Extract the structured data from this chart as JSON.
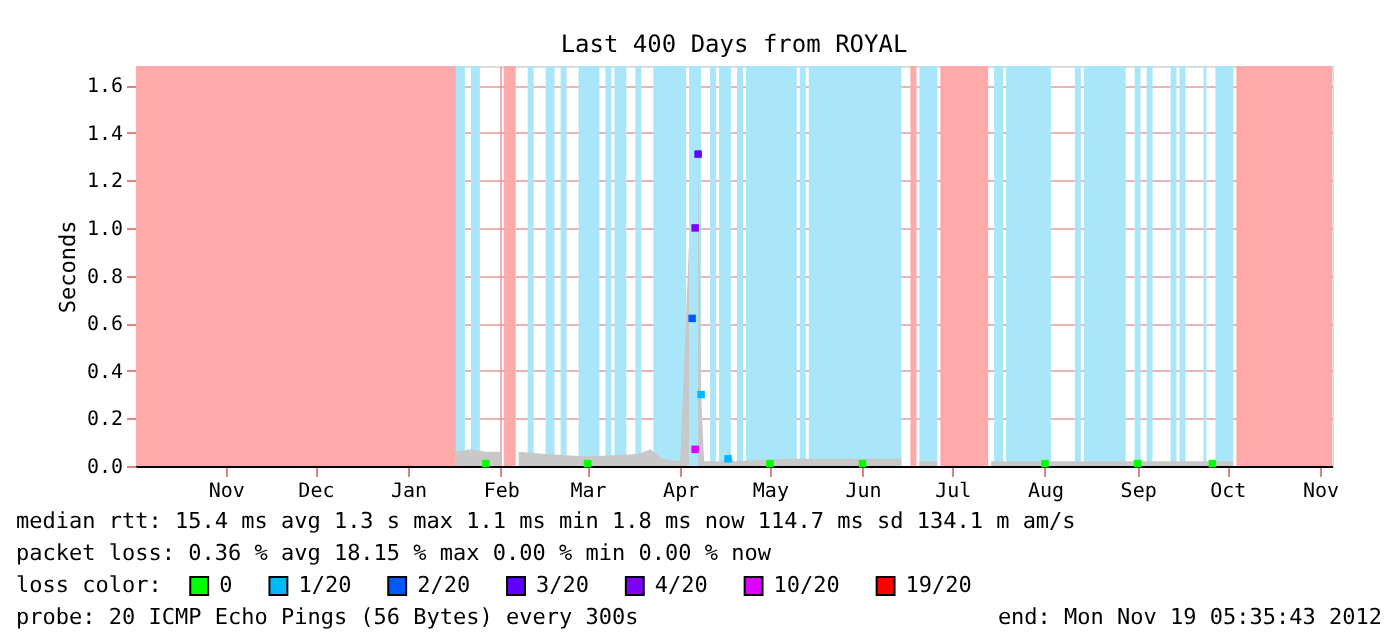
{
  "chart_data": {
    "type": "area",
    "title": "Last 400 Days from ROYAL",
    "ylabel": "Seconds",
    "legend_title": "loss color:",
    "legend": "bottom",
    "grid": true,
    "xlim": [
      "2011-10-16",
      "2012-11-19"
    ],
    "xticks": [
      {
        "value": "2011-11-15",
        "label": "Nov"
      },
      {
        "value": "2011-12-15",
        "label": "Dec"
      },
      {
        "value": "2012-01-15",
        "label": "Jan"
      },
      {
        "value": "2012-02-15",
        "label": "Feb"
      },
      {
        "value": "2012-03-15",
        "label": "Mar"
      },
      {
        "value": "2012-04-15",
        "label": "Apr"
      },
      {
        "value": "2012-05-15",
        "label": "May"
      },
      {
        "value": "2012-06-15",
        "label": "Jun"
      },
      {
        "value": "2012-07-15",
        "label": "Jul"
      },
      {
        "value": "2012-08-15",
        "label": "Aug"
      },
      {
        "value": "2012-09-15",
        "label": "Sep"
      },
      {
        "value": "2012-10-15",
        "label": "Oct"
      },
      {
        "value": "2012-11-15",
        "label": "Nov"
      }
    ],
    "ylim": [
      0,
      1.68
    ],
    "yticks": [
      {
        "value": 0,
        "label": "0.0"
      },
      0.2,
      0.4,
      0.6,
      0.8,
      {
        "value": 1,
        "label": "1.0"
      },
      1.2,
      1.4,
      1.6
    ],
    "series": [
      {
        "color": "#c8c8c8",
        "x": [
          "2012-01-31",
          "2012-02-05",
          "2012-02-10",
          "2012-02-15",
          "2012-02-16",
          "2012-02-20",
          "2012-02-21",
          "2012-03-01",
          "2012-03-15",
          "2012-04-01",
          "2012-04-05",
          "2012-04-09",
          "2012-04-15",
          "2012-04-18",
          "2012-04-19",
          "2012-04-20",
          "2012-04-21",
          "2012-04-22",
          "2012-04-23",
          "2012-04-30",
          "2012-05-01",
          "2012-05-03",
          "2012-05-20",
          "2012-06-28",
          "2012-07-01",
          "2012-07-04",
          "2012-07-10",
          "2012-07-11",
          "2012-07-28",
          "2012-08-20",
          "2012-09-20",
          "2012-10-17"
        ],
        "values": [
          0.06,
          0.07,
          0.06,
          0.06,
          null,
          null,
          0.06,
          0.05,
          0.04,
          0.05,
          0.07,
          0.03,
          0.02,
          0.95,
          null,
          null,
          1.3,
          0.3,
          0.02,
          0.02,
          0.06,
          0.02,
          0.03,
          0.03,
          null,
          0.02,
          0.02,
          null,
          0.02,
          0.02,
          0.02,
          0.02
        ]
      },
      {
        "type": "scatter",
        "name": "0",
        "color": "#00ff00",
        "marker": "square",
        "x": [
          "2012-02-10",
          "2012-03-15",
          "2012-05-15",
          "2012-06-15",
          "2012-08-15",
          "2012-09-15",
          "2012-10-10"
        ],
        "values": [
          0.01,
          0.01,
          0.01,
          0.01,
          0.01,
          0.01,
          0.01
        ]
      },
      {
        "type": "scatter",
        "name": "1/20",
        "color": "#00b8ff",
        "marker": "square",
        "x": [
          "2012-04-22",
          "2012-05-01"
        ],
        "values": [
          0.3,
          0.03
        ]
      },
      {
        "type": "scatter",
        "name": "2/20",
        "color": "#0059ff",
        "marker": "square",
        "x": [
          "2012-04-19"
        ],
        "values": [
          0.62
        ]
      },
      {
        "type": "scatter",
        "name": "3/20",
        "color": "#5e00ff",
        "marker": "square",
        "x": [
          "2012-04-21"
        ],
        "values": [
          1.31
        ]
      },
      {
        "type": "scatter",
        "name": "4/20",
        "color": "#7e00ff",
        "marker": "square",
        "x": [
          "2012-04-20"
        ],
        "values": [
          1.0
        ]
      },
      {
        "type": "scatter",
        "name": "10/20",
        "color": "#dd00ff",
        "marker": "square",
        "x": [
          "2012-04-20"
        ],
        "values": [
          0.07
        ]
      },
      {
        "type": "scatter",
        "name": "19/20",
        "color": "#ff0000",
        "marker": "square"
      }
    ],
    "bands": [
      {
        "axis": "x",
        "from": "2011-10-16",
        "to": "2012-01-31",
        "color": "#ffaaaa"
      },
      {
        "axis": "x",
        "from": "2012-02-16",
        "to": "2012-02-20",
        "color": "#ffaaaa"
      },
      {
        "axis": "x",
        "from": "2012-07-01",
        "to": "2012-07-03",
        "color": "#ffaaaa"
      },
      {
        "axis": "x",
        "from": "2012-07-11",
        "to": "2012-07-27",
        "color": "#ffaaaa"
      },
      {
        "axis": "x",
        "from": "2012-10-18",
        "to": "2012-11-19",
        "color": "#ffaaaa"
      },
      {
        "axis": "x",
        "from": "2012-01-31",
        "to": "2012-02-03",
        "color": "#aae6fa"
      },
      {
        "axis": "x",
        "from": "2012-02-05",
        "to": "2012-02-08",
        "color": "#aae6fa"
      },
      {
        "axis": "x",
        "from": "2012-02-24",
        "to": "2012-02-26",
        "color": "#aae6fa"
      },
      {
        "axis": "x",
        "from": "2012-03-01",
        "to": "2012-03-04",
        "color": "#aae6fa"
      },
      {
        "axis": "x",
        "from": "2012-03-06",
        "to": "2012-03-08",
        "color": "#aae6fa"
      },
      {
        "axis": "x",
        "from": "2012-03-12",
        "to": "2012-03-19",
        "color": "#aae6fa"
      },
      {
        "axis": "x",
        "from": "2012-03-21",
        "to": "2012-03-23",
        "color": "#aae6fa"
      },
      {
        "axis": "x",
        "from": "2012-03-24",
        "to": "2012-03-28",
        "color": "#aae6fa"
      },
      {
        "axis": "x",
        "from": "2012-03-31",
        "to": "2012-04-02",
        "color": "#aae6fa"
      },
      {
        "axis": "x",
        "from": "2012-04-06",
        "to": "2012-04-17",
        "color": "#aae6fa"
      },
      {
        "axis": "x",
        "from": "2012-04-18",
        "to": "2012-04-22",
        "color": "#aae6fa"
      },
      {
        "axis": "x",
        "from": "2012-04-25",
        "to": "2012-04-27",
        "color": "#aae6fa"
      },
      {
        "axis": "x",
        "from": "2012-04-28",
        "to": "2012-05-02",
        "color": "#aae6fa"
      },
      {
        "axis": "x",
        "from": "2012-05-04",
        "to": "2012-05-06",
        "color": "#aae6fa"
      },
      {
        "axis": "x",
        "from": "2012-05-07",
        "to": "2012-05-24",
        "color": "#aae6fa"
      },
      {
        "axis": "x",
        "from": "2012-05-25",
        "to": "2012-05-27",
        "color": "#aae6fa"
      },
      {
        "axis": "x",
        "from": "2012-05-28",
        "to": "2012-06-28",
        "color": "#aae6fa"
      },
      {
        "axis": "x",
        "from": "2012-07-04",
        "to": "2012-07-10",
        "color": "#aae6fa"
      },
      {
        "axis": "x",
        "from": "2012-07-29",
        "to": "2012-08-01",
        "color": "#aae6fa"
      },
      {
        "axis": "x",
        "from": "2012-08-02",
        "to": "2012-08-17",
        "color": "#aae6fa"
      },
      {
        "axis": "x",
        "from": "2012-08-25",
        "to": "2012-08-27",
        "color": "#aae6fa"
      },
      {
        "axis": "x",
        "from": "2012-08-28",
        "to": "2012-09-11",
        "color": "#aae6fa"
      },
      {
        "axis": "x",
        "from": "2012-09-14",
        "to": "2012-09-16",
        "color": "#aae6fa"
      },
      {
        "axis": "x",
        "from": "2012-09-18",
        "to": "2012-09-20",
        "color": "#aae6fa"
      },
      {
        "axis": "x",
        "from": "2012-09-26",
        "to": "2012-09-28",
        "color": "#aae6fa"
      },
      {
        "axis": "x",
        "from": "2012-09-29",
        "to": "2012-10-01",
        "color": "#aae6fa"
      },
      {
        "axis": "x",
        "from": "2012-10-07",
        "to": "2012-10-08",
        "color": "#aae6fa"
      },
      {
        "axis": "x",
        "from": "2012-10-11",
        "to": "2012-10-17",
        "color": "#aae6fa"
      }
    ],
    "annotations": [
      "median rtt:  15.4 ms avg  1.3  s max  1.1 ms min  1.8 ms now  114.7 ms sd  134.1 m am/s",
      "packet loss: 0.36 % avg  18.15 % max  0.00 % min  0.00 % now",
      "probe:       20 ICMP Echo Pings (56 Bytes) every 300s",
      "end: Mon Nov 19 05:35:43 2012"
    ]
  }
}
